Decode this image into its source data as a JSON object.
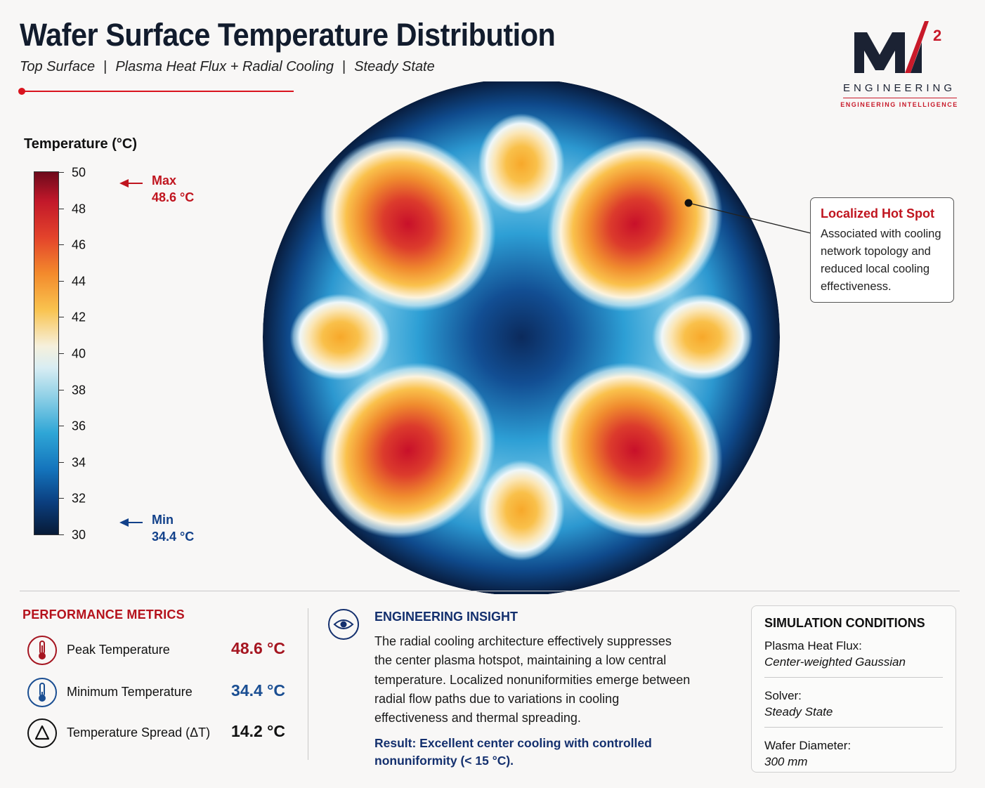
{
  "header": {
    "title": "Wafer Surface Temperature Distribution",
    "subtitle_parts": [
      "Top Surface",
      "Plasma Heat Flux + Radial Cooling",
      "Steady State"
    ],
    "subtitle_separator": "|"
  },
  "logo": {
    "mark": "M",
    "superscript": "2",
    "word": "ENGINEERING",
    "tagline": "ENGINEERING INTELLIGENCE"
  },
  "chart_data": {
    "type": "heatmap",
    "colorbar": {
      "title": "Temperature (°C)",
      "min": 30,
      "max": 50,
      "ticks": [
        50,
        48,
        46,
        44,
        42,
        40,
        38,
        36,
        34,
        32,
        30
      ]
    },
    "markers": {
      "max": {
        "label": "Max",
        "value": "48.6 °C"
      },
      "min": {
        "label": "Min",
        "value": "34.4 °C"
      }
    },
    "field": {
      "base_temperature": 34.4,
      "hot_spots": [
        {
          "angle_deg": 45,
          "radius": 0.62,
          "peak": 48.6
        },
        {
          "angle_deg": 135,
          "radius": 0.62,
          "peak": 48.4
        },
        {
          "angle_deg": 225,
          "radius": 0.62,
          "peak": 48.3
        },
        {
          "angle_deg": 315,
          "radius": 0.62,
          "peak": 48.5
        }
      ],
      "warm_spots": [
        {
          "angle_deg": 90,
          "radius": 0.67,
          "peak": 44.2
        },
        {
          "angle_deg": 180,
          "radius": 0.7,
          "peak": 44.0
        },
        {
          "angle_deg": 270,
          "radius": 0.67,
          "peak": 44.1
        },
        {
          "angle_deg": 0,
          "radius": 0.7,
          "peak": 44.0
        }
      ]
    },
    "callout": {
      "title": "Localized Hot Spot",
      "text": "Associated with cooling network topology and reduced local cooling effectiveness."
    }
  },
  "colors": {
    "accent_red": "#c0151f",
    "accent_blue": "#12418a",
    "navy": "#14306e"
  },
  "metrics": {
    "title": "PERFORMANCE METRICS",
    "items": [
      {
        "label": "Peak Temperature",
        "value": "48.6 °C",
        "icon": "thermometer-hot-icon",
        "color": "#a51520"
      },
      {
        "label": "Minimum Temperature",
        "value": "34.4 °C",
        "icon": "thermometer-cold-icon",
        "color": "#1a4e92"
      },
      {
        "label": "Temperature Spread (ΔT)",
        "value": "14.2 °C",
        "icon": "delta-icon",
        "color": "#111111"
      }
    ]
  },
  "insight": {
    "title": "ENGINEERING INSIGHT",
    "icon": "eye-icon",
    "body": "The radial cooling architecture effectively suppresses the center plasma hotspot, maintaining a low central temperature. Localized nonuniformities emerge between radial flow paths due to variations in cooling effectiveness and thermal spreading.",
    "result": "Result: Excellent center cooling with controlled nonuniformity (< 15 °C)."
  },
  "simulation": {
    "title": "SIMULATION CONDITIONS",
    "items": [
      {
        "key": "Plasma Heat Flux:",
        "value": "Center-weighted Gaussian"
      },
      {
        "key": "Solver:",
        "value": "Steady State"
      },
      {
        "key": "Wafer Diameter:",
        "value": "300 mm"
      }
    ]
  }
}
